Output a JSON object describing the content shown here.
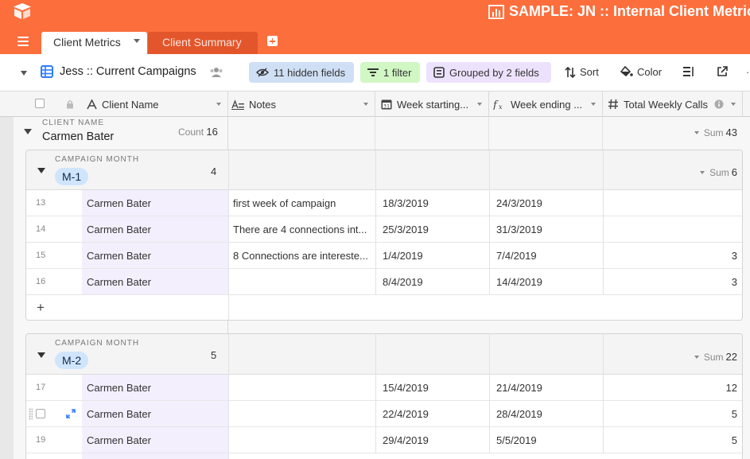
{
  "app": {
    "base_title": "SAMPLE: JN :: Internal Client Metrics",
    "accent": "#fc6e3c"
  },
  "tabs": [
    {
      "label": "Client Metrics",
      "active": true
    },
    {
      "label": "Client Summary",
      "active": false
    }
  ],
  "view": {
    "name": "Jess :: Current Campaigns",
    "hidden_fields": "11 hidden fields",
    "filter": "1 filter",
    "grouped": "Grouped by 2 fields",
    "sort": "Sort",
    "color": "Color"
  },
  "columns": [
    {
      "label": "Client Name",
      "icon": "text-field-icon"
    },
    {
      "label": "Notes",
      "icon": "long-text-icon"
    },
    {
      "label": "Week starting...",
      "icon": "calendar-icon"
    },
    {
      "label": "Week ending ...",
      "icon": "formula-icon"
    },
    {
      "label": "Total Weekly Calls",
      "icon": "number-icon"
    }
  ],
  "group1": {
    "label": "CLIENT NAME",
    "value": "Carmen Bater",
    "count_label": "Count",
    "count": "16",
    "sum_label": "Sum",
    "sum": "43"
  },
  "subgroups": [
    {
      "label": "CAMPAIGN MONTH",
      "value": "M-1",
      "count": "4",
      "sum_label": "Sum",
      "sum": "6",
      "rows": [
        {
          "num": "13",
          "client": "Carmen Bater",
          "notes": "first week of campaign",
          "start": "18/3/2019",
          "end": "24/3/2019",
          "calls": ""
        },
        {
          "num": "14",
          "client": "Carmen Bater",
          "notes": "There are 4 connections int...",
          "start": "25/3/2019",
          "end": "31/3/2019",
          "calls": ""
        },
        {
          "num": "15",
          "client": "Carmen Bater",
          "notes": "8 Connections are intereste...",
          "start": "1/4/2019",
          "end": "7/4/2019",
          "calls": "3"
        },
        {
          "num": "16",
          "client": "Carmen Bater",
          "notes": "",
          "start": "8/4/2019",
          "end": "14/4/2019",
          "calls": "3"
        }
      ],
      "add_label": "+"
    },
    {
      "label": "CAMPAIGN MONTH",
      "value": "M-2",
      "count": "5",
      "sum_label": "Sum",
      "sum": "22",
      "rows": [
        {
          "num": "17",
          "client": "Carmen Bater",
          "notes": "",
          "start": "15/4/2019",
          "end": "21/4/2019",
          "calls": "12"
        },
        {
          "num": "",
          "client": "Carmen Bater",
          "notes": "",
          "start": "22/4/2019",
          "end": "28/4/2019",
          "calls": "5"
        },
        {
          "num": "19",
          "client": "Carmen Bater",
          "notes": "",
          "start": "29/4/2019",
          "end": "5/5/2019",
          "calls": "5"
        }
      ]
    }
  ]
}
